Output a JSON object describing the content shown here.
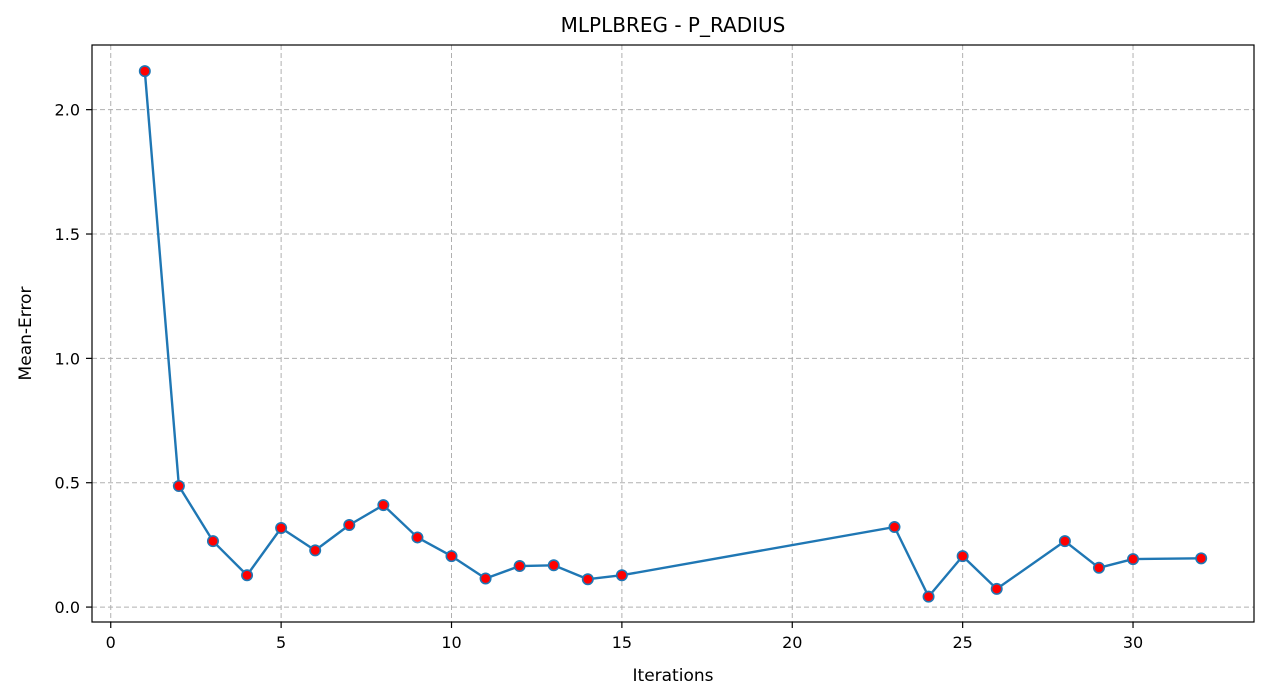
{
  "chart_data": {
    "type": "line",
    "title": "MLPLBREG - P_RADIUS",
    "xlabel": "Iterations",
    "ylabel": "Mean-Error",
    "xlim": [
      -0.55,
      33.55
    ],
    "ylim": [
      -0.06,
      2.26
    ],
    "xticks": [
      0,
      5,
      10,
      15,
      20,
      25,
      30
    ],
    "yticks": [
      0.0,
      0.5,
      1.0,
      1.5,
      2.0
    ],
    "xtick_labels": [
      "0",
      "5",
      "10",
      "15",
      "20",
      "25",
      "30"
    ],
    "ytick_labels": [
      "0.0",
      "0.5",
      "1.0",
      "1.5",
      "2.0"
    ],
    "grid": true,
    "line_color": "#1f77b4",
    "marker_color": "#ff0000",
    "series": [
      {
        "x": [
          1,
          2,
          3,
          4,
          5,
          6,
          7,
          8,
          9,
          10,
          11,
          12,
          13,
          14,
          15,
          23,
          24,
          25,
          26,
          28,
          29,
          30,
          32
        ],
        "y": [
          2.155,
          0.487,
          0.265,
          0.128,
          0.318,
          0.228,
          0.33,
          0.41,
          0.28,
          0.205,
          0.115,
          0.165,
          0.168,
          0.112,
          0.128,
          0.322,
          0.042,
          0.205,
          0.073,
          0.265,
          0.158,
          0.193,
          0.196
        ]
      }
    ]
  }
}
